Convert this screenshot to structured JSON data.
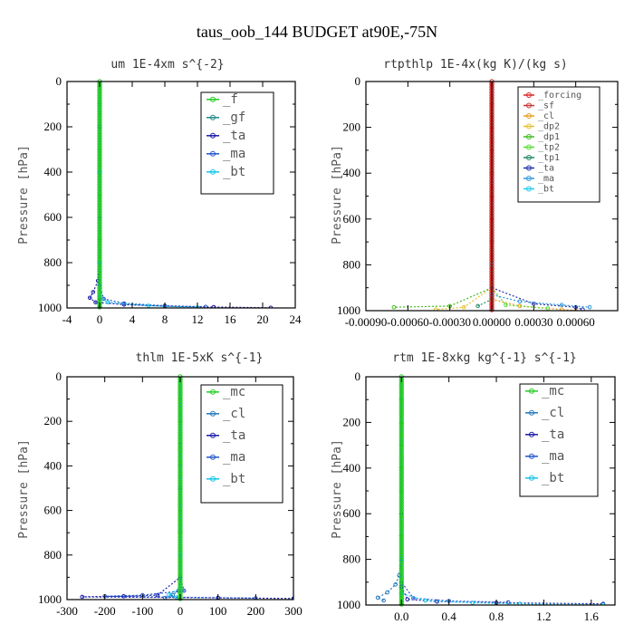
{
  "figure": {
    "title": "taus_oob_144  BUDGET at90E,-75N"
  },
  "chart_data": [
    {
      "type": "line",
      "title": "um  1E-4xm s^{-2}",
      "ylabel": "Pressure [hPa]",
      "xlim": [
        -4,
        24
      ],
      "ylim": [
        1000,
        0
      ],
      "xticks": [
        -4,
        0,
        4,
        8,
        12,
        16,
        20,
        24
      ],
      "yticks": [
        0,
        200,
        400,
        600,
        800,
        1000
      ],
      "xtick_labels": [
        "-4",
        "0",
        "4",
        "8",
        "12",
        "16",
        "20",
        "24"
      ],
      "legend_position": "top-right",
      "series": [
        {
          "name": "_f",
          "color": "#22cc22",
          "points": [
            [
              0,
              0
            ],
            [
              0,
              100
            ],
            [
              0,
              200
            ],
            [
              0,
              300
            ],
            [
              0,
              400
            ],
            [
              0,
              500
            ],
            [
              0,
              600
            ],
            [
              0,
              700
            ],
            [
              0,
              800
            ],
            [
              0,
              900
            ],
            [
              0,
              960
            ],
            [
              0,
              1000
            ]
          ]
        },
        {
          "name": "_gf",
          "color": "#228888",
          "points": [
            [
              0,
              0
            ],
            [
              0,
              200
            ],
            [
              0,
              400
            ],
            [
              0,
              600
            ],
            [
              0,
              800
            ],
            [
              0,
              900
            ],
            [
              0,
              960
            ],
            [
              0,
              1000
            ]
          ]
        },
        {
          "name": "_ta",
          "color": "#1a1aaa",
          "points": [
            [
              0,
              0
            ],
            [
              0,
              400
            ],
            [
              0,
              800
            ],
            [
              -0.2,
              880
            ],
            [
              -0.8,
              930
            ],
            [
              -1.2,
              955
            ],
            [
              -0.5,
              975
            ],
            [
              3,
              985
            ],
            [
              8,
              992
            ],
            [
              14,
              996
            ],
            [
              21,
              999
            ]
          ]
        },
        {
          "name": "_ma",
          "color": "#2255cc",
          "points": [
            [
              0,
              0
            ],
            [
              0,
              400
            ],
            [
              0,
              800
            ],
            [
              0,
              900
            ],
            [
              0.5,
              960
            ],
            [
              3,
              980
            ],
            [
              8,
              990
            ],
            [
              13,
              995
            ]
          ]
        },
        {
          "name": "_bt",
          "color": "#11c4e6",
          "points": [
            [
              0,
              0
            ],
            [
              0,
              400
            ],
            [
              0,
              800
            ],
            [
              0,
              950
            ],
            [
              1,
              975
            ],
            [
              6,
              990
            ],
            [
              12,
              998
            ]
          ]
        }
      ]
    },
    {
      "type": "line",
      "title": "rtpthlp  1E-4x(kg K)/(kg s)",
      "ylabel": "Pressure [hPa]",
      "xlim": [
        -0.0009,
        0.0009
      ],
      "ylim": [
        1000,
        0
      ],
      "xticks": [
        -0.0009,
        -0.0006,
        -0.0003,
        0,
        0.0003,
        0.0006
      ],
      "yticks": [
        0,
        200,
        400,
        600,
        800,
        1000
      ],
      "xtick_labels": [
        "-0.00090",
        "-0.00060",
        "-0.00030",
        "0.00000",
        "0.00030",
        "0.00060"
      ],
      "legend_position": "top-right",
      "series": [
        {
          "name": "_forcing",
          "color": "#dd2222",
          "points": [
            [
              0,
              0
            ],
            [
              0,
              100
            ],
            [
              0,
              200
            ],
            [
              0,
              300
            ],
            [
              0,
              400
            ],
            [
              0,
              500
            ],
            [
              0,
              600
            ],
            [
              0,
              700
            ],
            [
              0,
              800
            ],
            [
              0,
              900
            ],
            [
              0,
              1000
            ]
          ]
        },
        {
          "name": "_sf",
          "color": "#cc3333",
          "points": [
            [
              0,
              0
            ],
            [
              0,
              500
            ],
            [
              0,
              1000
            ]
          ]
        },
        {
          "name": "_cl",
          "color": "#e8a020",
          "points": [
            [
              0,
              0
            ],
            [
              0,
              800
            ],
            [
              0,
              950
            ],
            [
              0.0002,
              980
            ],
            [
              0.0005,
              995
            ],
            [
              0.0006,
              1000
            ]
          ]
        },
        {
          "name": "_dp2",
          "color": "#e8c030",
          "points": [
            [
              0,
              0
            ],
            [
              0,
              900
            ],
            [
              -0.0002,
              985
            ],
            [
              -0.0004,
              995
            ]
          ]
        },
        {
          "name": "_dp1",
          "color": "#44bb22",
          "points": [
            [
              0,
              0
            ],
            [
              0,
              900
            ],
            [
              -0.0003,
              980
            ],
            [
              -0.0007,
              985
            ]
          ]
        },
        {
          "name": "_tp2",
          "color": "#55dd33",
          "points": [
            [
              0,
              0
            ],
            [
              0,
              900
            ],
            [
              0.0001,
              975
            ],
            [
              0.0004,
              990
            ]
          ]
        },
        {
          "name": "_tp1",
          "color": "#228866",
          "points": [
            [
              0,
              0
            ],
            [
              0,
              950
            ],
            [
              -0.0001,
              980
            ]
          ]
        },
        {
          "name": "_ta",
          "color": "#2233aa",
          "points": [
            [
              0,
              0
            ],
            [
              0,
              900
            ],
            [
              0.0003,
              970
            ],
            [
              0.0006,
              985
            ],
            [
              0.00065,
              995
            ]
          ]
        },
        {
          "name": "_ma",
          "color": "#3399dd",
          "points": [
            [
              0,
              0
            ],
            [
              0,
              930
            ],
            [
              0.0002,
              960
            ],
            [
              0.0005,
              975
            ],
            [
              0.0007,
              985
            ]
          ]
        },
        {
          "name": "_bt",
          "color": "#22ccee",
          "points": [
            [
              0,
              0
            ],
            [
              0,
              800
            ],
            [
              0,
              1000
            ]
          ]
        }
      ]
    },
    {
      "type": "line",
      "title": "thlm  1E-5xK s^{-1}",
      "ylabel": "Pressure [hPa]",
      "xlim": [
        -300,
        300
      ],
      "ylim": [
        1000,
        0
      ],
      "xticks": [
        -300,
        -200,
        -100,
        0,
        100,
        200,
        300
      ],
      "yticks": [
        0,
        200,
        400,
        600,
        800,
        1000
      ],
      "xtick_labels": [
        "-300",
        "-200",
        "-100",
        "0",
        "100",
        "200",
        "300"
      ],
      "legend_position": "top-right",
      "series": [
        {
          "name": "_mc",
          "color": "#22cc22",
          "points": [
            [
              0,
              0
            ],
            [
              0,
              100
            ],
            [
              0,
              200
            ],
            [
              0,
              300
            ],
            [
              0,
              400
            ],
            [
              0,
              500
            ],
            [
              0,
              600
            ],
            [
              0,
              700
            ],
            [
              0,
              800
            ],
            [
              0,
              900
            ],
            [
              0,
              1000
            ]
          ]
        },
        {
          "name": "_cl",
          "color": "#2277bb",
          "points": [
            [
              0,
              0
            ],
            [
              0,
              500
            ],
            [
              0,
              900
            ],
            [
              -5,
              960
            ],
            [
              -20,
              980
            ],
            [
              -40,
              992
            ]
          ]
        },
        {
          "name": "_ta",
          "color": "#1a1aaa",
          "points": [
            [
              0,
              0
            ],
            [
              0,
              900
            ],
            [
              -60,
              980
            ],
            [
              -150,
              985
            ],
            [
              -260,
              988
            ],
            [
              100,
              992
            ],
            [
              300,
              995
            ]
          ]
        },
        {
          "name": "_ma",
          "color": "#2255cc",
          "points": [
            [
              0,
              0
            ],
            [
              0,
              900
            ],
            [
              10,
              960
            ],
            [
              -100,
              980
            ],
            [
              -200,
              985
            ],
            [
              200,
              994
            ]
          ]
        },
        {
          "name": "_bt",
          "color": "#11c4e6",
          "points": [
            [
              0,
              0
            ],
            [
              0,
              800
            ],
            [
              0,
              950
            ],
            [
              -30,
              978
            ],
            [
              -10,
              990
            ]
          ]
        }
      ]
    },
    {
      "type": "line",
      "title": "rtm  1E-8xkg kg^{-1} s^{-1}",
      "ylabel": "Pressure [hPa]",
      "xlim": [
        -0.3,
        1.8
      ],
      "ylim": [
        1000,
        0
      ],
      "xticks": [
        0,
        0.4,
        0.8,
        1.2,
        1.6
      ],
      "yticks": [
        0,
        200,
        400,
        600,
        800,
        1000
      ],
      "xtick_labels": [
        "0.0",
        "0.4",
        "0.8",
        "1.2",
        "1.6"
      ],
      "legend_position": "top-right",
      "series": [
        {
          "name": "_mc",
          "color": "#22cc22",
          "points": [
            [
              0,
              0
            ],
            [
              0,
              100
            ],
            [
              0,
              200
            ],
            [
              0,
              300
            ],
            [
              0,
              400
            ],
            [
              0,
              500
            ],
            [
              0,
              600
            ],
            [
              0,
              700
            ],
            [
              0,
              800
            ],
            [
              0,
              900
            ],
            [
              0,
              1000
            ]
          ]
        },
        {
          "name": "_cl",
          "color": "#2277bb",
          "points": [
            [
              0,
              0
            ],
            [
              0,
              600
            ],
            [
              0,
              800
            ],
            [
              -0.02,
              870
            ],
            [
              -0.05,
              910
            ],
            [
              -0.12,
              945
            ],
            [
              -0.2,
              968
            ],
            [
              -0.15,
              980
            ]
          ]
        },
        {
          "name": "_ta",
          "color": "#1a1aaa",
          "points": [
            [
              0,
              0
            ],
            [
              0,
              800
            ],
            [
              0,
              920
            ],
            [
              0.05,
              975
            ],
            [
              0.3,
              985
            ],
            [
              0.8,
              990
            ],
            [
              1.7,
              995
            ]
          ]
        },
        {
          "name": "_ma",
          "color": "#2255cc",
          "points": [
            [
              0,
              0
            ],
            [
              0,
              900
            ],
            [
              0.1,
              970
            ],
            [
              0.4,
              982
            ],
            [
              0.9,
              988
            ]
          ]
        },
        {
          "name": "_bt",
          "color": "#11c4e6",
          "points": [
            [
              0,
              0
            ],
            [
              0,
              800
            ],
            [
              0,
              950
            ],
            [
              0.2,
              980
            ],
            [
              0.6,
              990
            ],
            [
              1.0,
              995
            ],
            [
              1.7,
              999
            ]
          ]
        }
      ]
    }
  ]
}
